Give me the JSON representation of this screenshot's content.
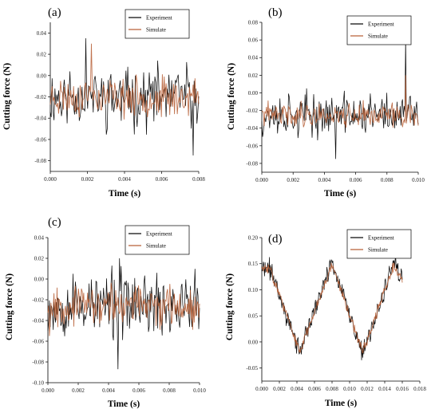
{
  "chart_data": [
    {
      "panel_label": "(a)",
      "type": "line",
      "xlabel": "Time (s)",
      "ylabel": "Cutting force (N)",
      "xlim": [
        0.0,
        0.008
      ],
      "ylim": [
        -0.09,
        0.05
      ],
      "xticks": [
        "0.000",
        "0.002",
        "0.004",
        "0.006",
        "0.008"
      ],
      "xtick_values": [
        0.0,
        0.002,
        0.004,
        0.006,
        0.008
      ],
      "yticks": [
        "-0.08",
        "-0.06",
        "-0.04",
        "-0.02",
        "0.00",
        "0.02",
        "0.04"
      ],
      "ytick_values": [
        -0.08,
        -0.06,
        -0.04,
        -0.02,
        0.0,
        0.02,
        0.04
      ],
      "legend_position": "top-right",
      "series": [
        {
          "name": "Experiment",
          "color": "#000000",
          "pattern": "noise",
          "base": -0.02,
          "amp": 0.045,
          "seed": 11,
          "n": 160,
          "spikes": [
            [
              0.0019,
              0.035
            ],
            [
              0.0077,
              -0.075
            ]
          ]
        },
        {
          "name": "Simulate",
          "color": "#b55a30",
          "pattern": "noise",
          "base": -0.02,
          "amp": 0.028,
          "seed": 23,
          "n": 160,
          "spikes": [
            [
              0.0022,
              0.03
            ]
          ]
        }
      ]
    },
    {
      "panel_label": "(b)",
      "type": "line",
      "xlabel": "Time (s)",
      "ylabel": "Cutting force (N)",
      "xlim": [
        0.0,
        0.01
      ],
      "ylim": [
        -0.09,
        0.08
      ],
      "xticks": [
        "0.000",
        "0.002",
        "0.004",
        "0.006",
        "0.008",
        "0.010"
      ],
      "xtick_values": [
        0.0,
        0.002,
        0.004,
        0.006,
        0.008,
        0.01
      ],
      "yticks": [
        "-0.08",
        "-0.06",
        "-0.04",
        "-0.02",
        "0.00",
        "0.02",
        "0.04",
        "0.06",
        "0.08"
      ],
      "ytick_values": [
        -0.08,
        -0.06,
        -0.04,
        -0.02,
        0.0,
        0.02,
        0.04,
        0.06,
        0.08
      ],
      "legend_position": "top-right",
      "series": [
        {
          "name": "Experiment",
          "color": "#000000",
          "pattern": "noise",
          "base": -0.025,
          "amp": 0.038,
          "seed": 37,
          "n": 200,
          "spikes": [
            [
              0.0092,
              0.062
            ],
            [
              0.0047,
              -0.075
            ]
          ]
        },
        {
          "name": "Simulate",
          "color": "#b55a30",
          "pattern": "noise",
          "base": -0.025,
          "amp": 0.022,
          "seed": 41,
          "n": 200,
          "spikes": [
            [
              0.0092,
              0.02
            ]
          ]
        }
      ]
    },
    {
      "panel_label": "(c)",
      "type": "line",
      "xlabel": "Time (s)",
      "ylabel": "Cutting force (N)",
      "xlim": [
        0.0,
        0.01
      ],
      "ylim": [
        -0.1,
        0.04
      ],
      "xticks": [
        "0.000",
        "0.002",
        "0.004",
        "0.006",
        "0.008",
        "0.010"
      ],
      "xtick_values": [
        0.0,
        0.002,
        0.004,
        0.006,
        0.008,
        0.01
      ],
      "yticks": [
        "-0.10",
        "-0.08",
        "-0.06",
        "-0.04",
        "-0.02",
        "0.00",
        "0.02",
        "0.04"
      ],
      "ytick_values": [
        -0.1,
        -0.08,
        -0.06,
        -0.04,
        -0.02,
        0.0,
        0.02,
        0.04
      ],
      "legend_position": "top-right",
      "series": [
        {
          "name": "Experiment",
          "color": "#000000",
          "pattern": "noise",
          "base": -0.025,
          "amp": 0.05,
          "seed": 53,
          "n": 200,
          "spikes": [
            [
              0.0046,
              -0.087
            ],
            [
              0.0047,
              0.02
            ]
          ]
        },
        {
          "name": "Simulate",
          "color": "#b55a30",
          "pattern": "noise",
          "base": -0.025,
          "amp": 0.03,
          "seed": 67,
          "n": 200,
          "spikes": [
            [
              0.0001,
              -0.055
            ]
          ]
        }
      ]
    },
    {
      "panel_label": "(d)",
      "type": "line",
      "xlabel": "Time (s)",
      "ylabel": "Cutting force (N)",
      "xlim": [
        0.0,
        0.018
      ],
      "ylim": [
        -0.075,
        0.2
      ],
      "xticks": [
        "0.000",
        "0.002",
        "0.004",
        "0.006",
        "0.008",
        "0.010",
        "0.012",
        "0.014",
        "0.016",
        "0.018"
      ],
      "xtick_values": [
        0.0,
        0.002,
        0.004,
        0.006,
        0.008,
        0.01,
        0.012,
        0.014,
        0.016,
        0.018
      ],
      "yticks": [
        "-0.05",
        "0.00",
        "0.05",
        "0.10",
        "0.15",
        "0.20"
      ],
      "ytick_values": [
        -0.05,
        0.0,
        0.05,
        0.1,
        0.15,
        0.2
      ],
      "legend_position": "top-right",
      "series": [
        {
          "name": "Experiment",
          "color": "#000000",
          "pattern": "triangle",
          "xend": 0.016,
          "knots": [
            [
              0.0,
              0.14
            ],
            [
              0.001,
              0.14
            ],
            [
              0.0043,
              -0.02
            ],
            [
              0.008,
              0.155
            ],
            [
              0.0115,
              -0.025
            ],
            [
              0.015,
              0.15
            ],
            [
              0.016,
              0.12
            ]
          ],
          "amp": 0.03,
          "seed": 71,
          "n": 260
        },
        {
          "name": "Simulate",
          "color": "#b55a30",
          "pattern": "triangle",
          "xend": 0.016,
          "knots": [
            [
              0.0,
              0.14
            ],
            [
              0.001,
              0.14
            ],
            [
              0.0043,
              -0.02
            ],
            [
              0.008,
              0.15
            ],
            [
              0.0115,
              -0.02
            ],
            [
              0.015,
              0.145
            ],
            [
              0.016,
              0.12
            ]
          ],
          "amp": 0.015,
          "seed": 83,
          "n": 260
        }
      ]
    }
  ]
}
